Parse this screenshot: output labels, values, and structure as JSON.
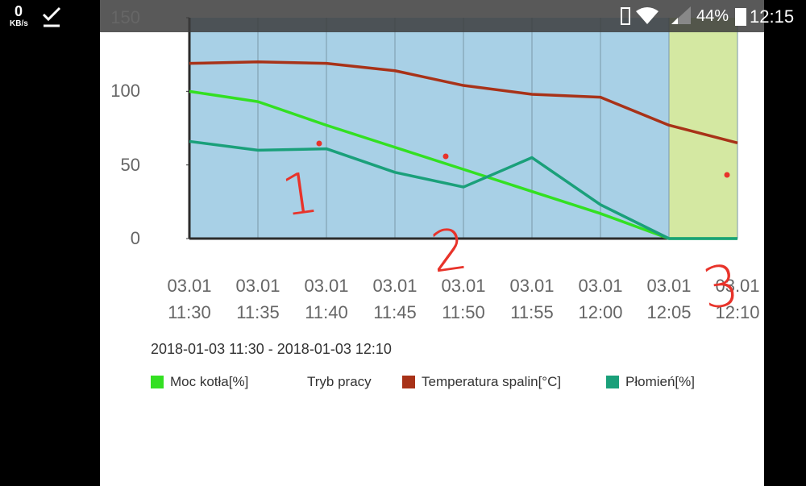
{
  "status_bar": {
    "speed": "0",
    "speed_unit": "KB/s",
    "battery": "44%",
    "time": "12:15"
  },
  "chart_data": {
    "type": "line",
    "subtitle": "2018-01-03 11:30 - 2018-01-03 12:10",
    "categories": [
      "03.01\n11:30",
      "03.01\n11:35",
      "03.01\n11:40",
      "03.01\n11:45",
      "03.01\n11:50",
      "03.01\n11:55",
      "03.01\n12:00",
      "03.01\n12:05",
      "03.01\n12:10"
    ],
    "ylim": [
      0,
      150
    ],
    "yticks": [
      0,
      50,
      100,
      150
    ],
    "grid": true,
    "series": [
      {
        "name": "Moc kotła[%]",
        "color": "#33e022",
        "values": [
          100,
          93,
          77,
          62,
          47,
          32,
          17,
          0,
          0
        ]
      },
      {
        "name": "Tryb pracy",
        "bands": [
          "#a8d0e6",
          "#a8d0e6",
          "#a8d0e6",
          "#a8d0e6",
          "#a8d0e6",
          "#a8d0e6",
          "#a8d0e6",
          "#d4e8a2"
        ]
      },
      {
        "name": "Temperatura spalin[°C]",
        "color": "#a83218",
        "values": [
          119,
          120,
          119,
          114,
          104,
          98,
          96,
          77,
          65
        ]
      },
      {
        "name": "Płomień[%]",
        "color": "#1aa07a",
        "values": [
          66,
          60,
          61,
          45,
          35,
          55,
          23,
          0,
          0
        ]
      }
    ],
    "annotations": [
      "1",
      "2",
      "3"
    ]
  }
}
